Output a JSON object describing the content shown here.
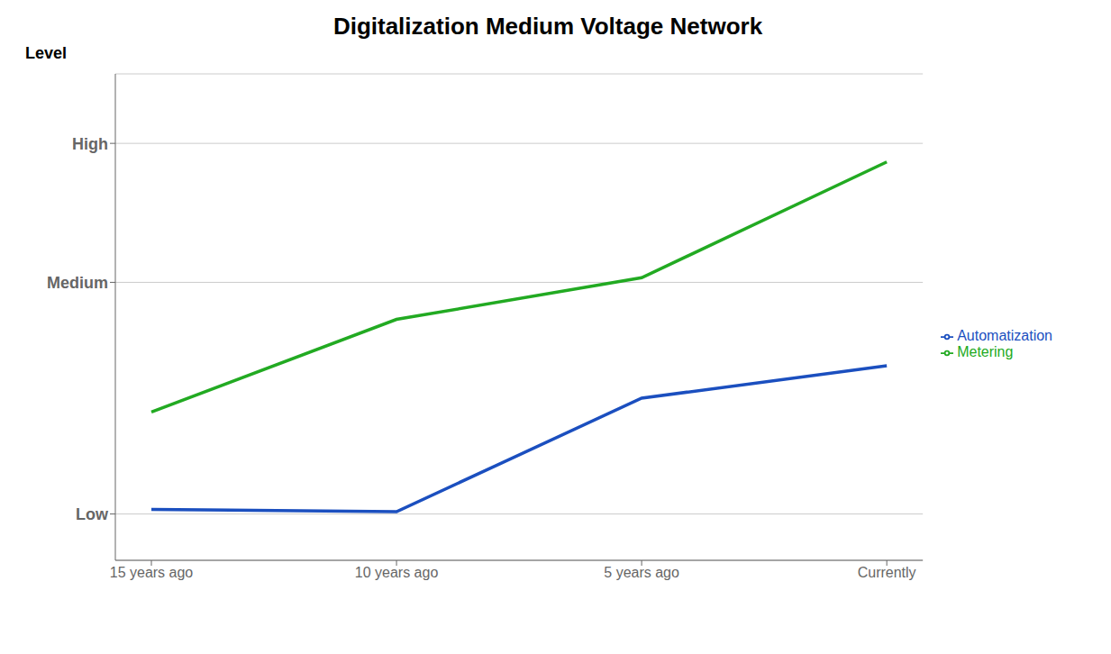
{
  "chart_data": {
    "type": "line",
    "title": "Digitalization Medium Voltage Network",
    "y_label": "Level",
    "categories": [
      "15 years ago",
      "10 years ago",
      "5 years ago",
      "Currently"
    ],
    "series": [
      {
        "name": "Automatization",
        "color": "#1B4FBF",
        "values": [
          1.1,
          1.05,
          3.5,
          4.2
        ]
      },
      {
        "name": "Metering",
        "color": "#22AA22",
        "values": [
          3.2,
          5.2,
          6.1,
          8.6
        ]
      }
    ],
    "ylim": [
      0,
      10.5
    ],
    "yticks": [
      {
        "value": 1.0,
        "label": "Low"
      },
      {
        "value": 6.0,
        "label": "Medium"
      },
      {
        "value": 9.0,
        "label": "High"
      }
    ],
    "grid": true,
    "legend": "right"
  }
}
